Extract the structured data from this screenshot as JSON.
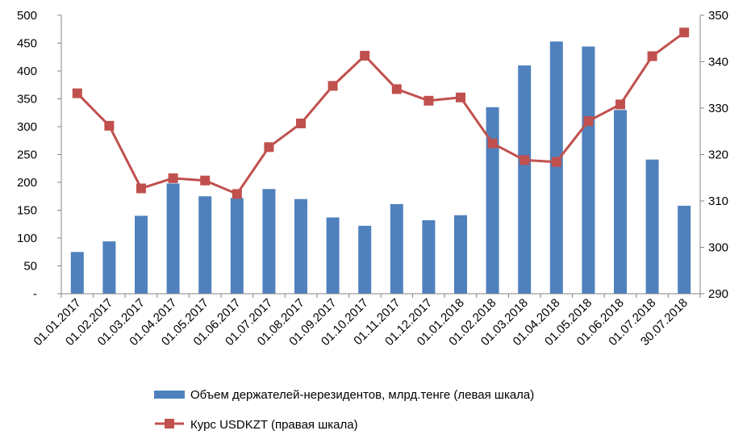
{
  "chart_data": {
    "type": "bar+line",
    "categories": [
      "01.01.2017",
      "01.02.2017",
      "01.03.2017",
      "01.04.2017",
      "01.05.2017",
      "01.06.2017",
      "01.07.2017",
      "01.08.2017",
      "01.09.2017",
      "01.10.2017",
      "01.11.2017",
      "01.12.2017",
      "01.01.2018",
      "01.02.2018",
      "01.03.2018",
      "01.04.2018",
      "01.05.2018",
      "01.06.2018",
      "01.07.2018",
      "30.07.2018"
    ],
    "left_axis": {
      "ylim": [
        0,
        500
      ],
      "ticks": [
        0,
        50,
        100,
        150,
        200,
        250,
        300,
        350,
        400,
        450,
        500
      ],
      "tick_labels": [
        "-",
        "50",
        "100",
        "150",
        "200",
        "250",
        "300",
        "350",
        "400",
        "450",
        "500"
      ]
    },
    "right_axis": {
      "ylim": [
        290,
        350
      ],
      "ticks": [
        290,
        300,
        310,
        320,
        330,
        340,
        350
      ],
      "tick_labels": [
        "290",
        "300",
        "310",
        "320",
        "330",
        "340",
        "350"
      ]
    },
    "series": [
      {
        "name": "Объем держателей-нерезидентов, млрд.тенге (левая шкала)",
        "kind": "bar",
        "axis": "left",
        "color": "#4f81bd",
        "values": [
          75,
          94,
          140,
          198,
          175,
          172,
          188,
          170,
          137,
          122,
          161,
          132,
          141,
          335,
          410,
          453,
          444,
          330,
          241,
          158
        ]
      },
      {
        "name": "Курс USDKZT (правая шкала)",
        "kind": "line",
        "axis": "right",
        "color": "#c0504d",
        "values": [
          333.2,
          326.2,
          312.7,
          314.9,
          314.4,
          311.5,
          321.6,
          326.7,
          334.8,
          341.3,
          334.1,
          331.6,
          332.3,
          322.4,
          318.8,
          318.4,
          327.2,
          330.8,
          341.2,
          346.3
        ]
      }
    ],
    "legend": {
      "position": "bottom",
      "entries": [
        "Объем держателей-нерезидентов, млрд.тенге (левая шкала)",
        "Курс USDKZT (правая шкала)"
      ]
    },
    "grid": false
  }
}
